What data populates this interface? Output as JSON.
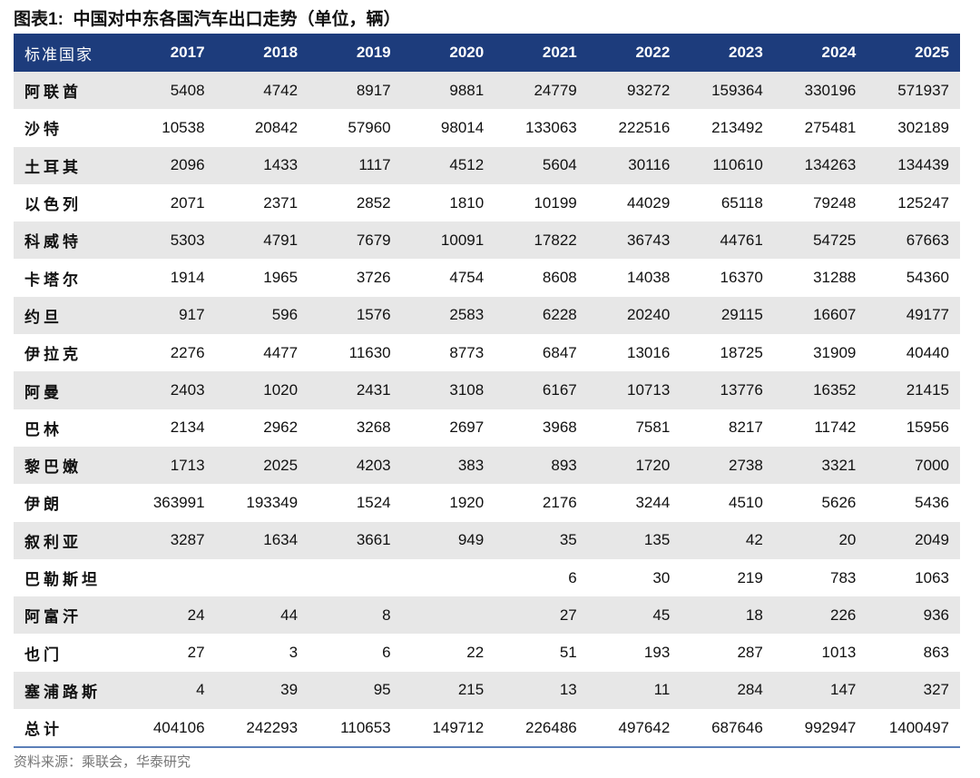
{
  "title": "图表1:  中国对中东各国汽车出口走势（单位，辆）",
  "table": {
    "header": [
      "标准国家",
      "2017",
      "2018",
      "2019",
      "2020",
      "2021",
      "2022",
      "2023",
      "2024",
      "2025"
    ],
    "rows": [
      [
        "阿联酋",
        5408,
        4742,
        8917,
        9881,
        24779,
        93272,
        159364,
        330196,
        571937
      ],
      [
        "沙特",
        10538,
        20842,
        57960,
        98014,
        133063,
        222516,
        213492,
        275481,
        302189
      ],
      [
        "土耳其",
        2096,
        1433,
        1117,
        4512,
        5604,
        30116,
        110610,
        134263,
        134439
      ],
      [
        "以色列",
        2071,
        2371,
        2852,
        1810,
        10199,
        44029,
        65118,
        79248,
        125247
      ],
      [
        "科威特",
        5303,
        4791,
        7679,
        10091,
        17822,
        36743,
        44761,
        54725,
        67663
      ],
      [
        "卡塔尔",
        1914,
        1965,
        3726,
        4754,
        8608,
        14038,
        16370,
        31288,
        54360
      ],
      [
        "约旦",
        917,
        596,
        1576,
        2583,
        6228,
        20240,
        29115,
        16607,
        49177
      ],
      [
        "伊拉克",
        2276,
        4477,
        11630,
        8773,
        6847,
        13016,
        18725,
        31909,
        40440
      ],
      [
        "阿曼",
        2403,
        1020,
        2431,
        3108,
        6167,
        10713,
        13776,
        16352,
        21415
      ],
      [
        "巴林",
        2134,
        2962,
        3268,
        2697,
        3968,
        7581,
        8217,
        11742,
        15956
      ],
      [
        "黎巴嫩",
        1713,
        2025,
        4203,
        383,
        893,
        1720,
        2738,
        3321,
        7000
      ],
      [
        "伊朗",
        363991,
        193349,
        1524,
        1920,
        2176,
        3244,
        4510,
        5626,
        5436
      ],
      [
        "叙利亚",
        3287,
        1634,
        3661,
        949,
        35,
        135,
        42,
        20,
        2049
      ],
      [
        "巴勒斯坦",
        null,
        null,
        null,
        null,
        6,
        30,
        219,
        783,
        1063
      ],
      [
        "阿富汗",
        24,
        44,
        8,
        null,
        27,
        45,
        18,
        226,
        936
      ],
      [
        "也门",
        27,
        3,
        6,
        22,
        51,
        193,
        287,
        1013,
        863
      ],
      [
        "塞浦路斯",
        4,
        39,
        95,
        215,
        13,
        11,
        284,
        147,
        327
      ],
      [
        "总计",
        404106,
        242293,
        110653,
        149712,
        226486,
        497642,
        687646,
        992947,
        1400497
      ]
    ]
  },
  "source": "资料来源：乘联会，华泰研究"
}
